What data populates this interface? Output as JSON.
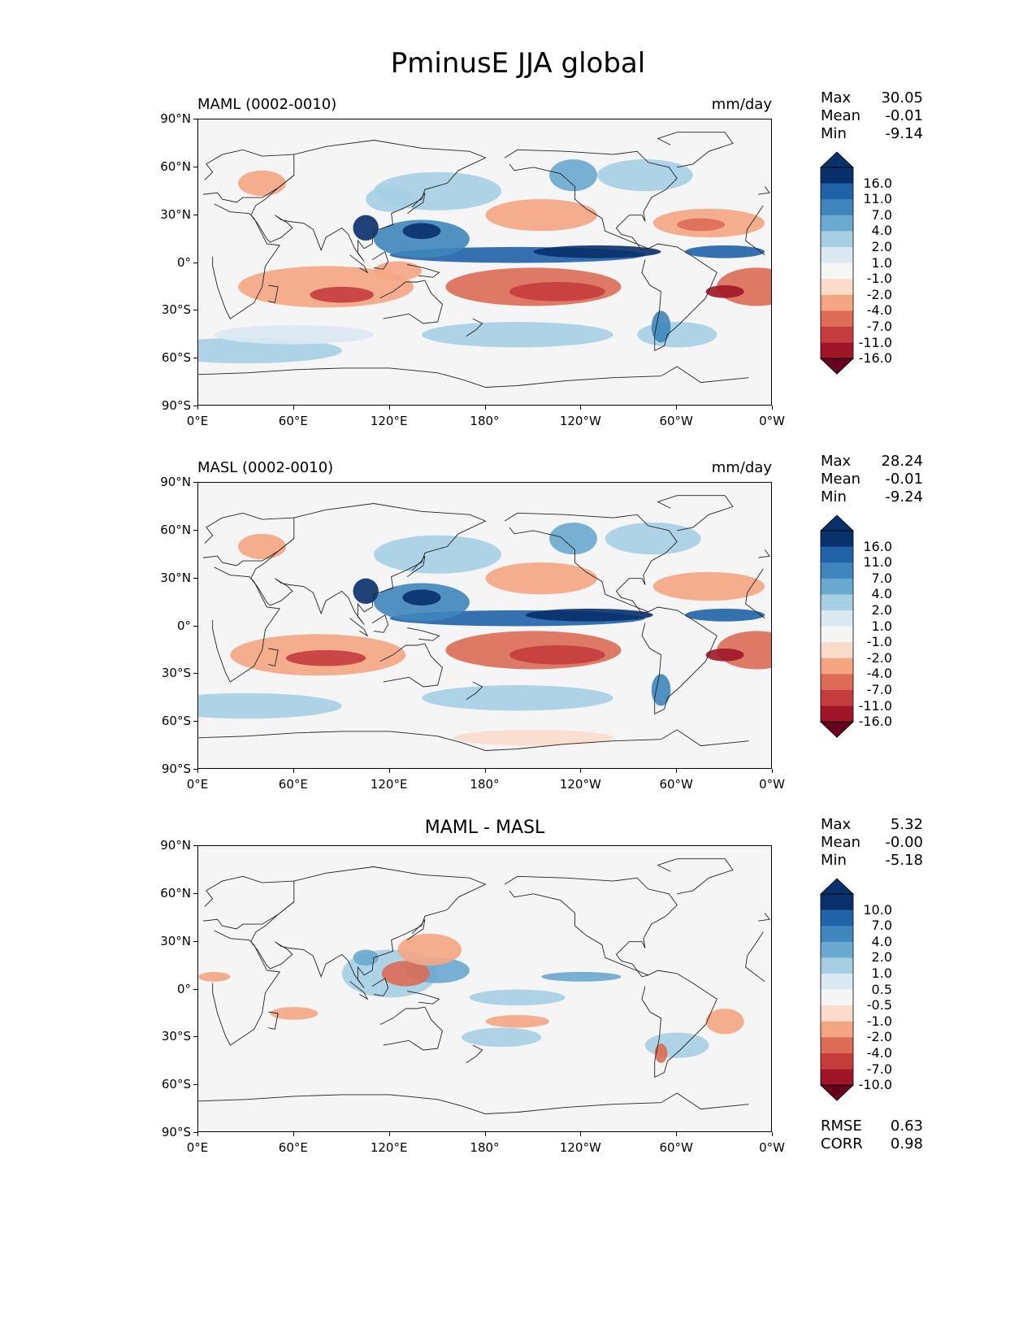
{
  "title": "PminusE JJA global",
  "colors": {
    "ocean_bg": "#f5f5f5",
    "coast": "#222222",
    "cmap_blue": [
      "#dbe9f3",
      "#a7cfe4",
      "#6aa9d0",
      "#3e86bc",
      "#2063a8",
      "#08306b"
    ],
    "cmap_red": [
      "#fbdccb",
      "#f4a683",
      "#dc6c57",
      "#c43c3c",
      "#a01628",
      "#67001f"
    ]
  },
  "axis": {
    "lat_ticks": [
      "90°N",
      "60°N",
      "30°N",
      "0°",
      "30°S",
      "60°S",
      "90°S"
    ],
    "lon_ticks": [
      "0°E",
      "60°E",
      "120°E",
      "180°",
      "120°W",
      "60°W",
      "0°W"
    ]
  },
  "panels": [
    {
      "label_left": "MAML (0002-0010)",
      "label_right": "mm/day",
      "label_center": "",
      "stats": [
        {
          "name": "Max",
          "value": "30.05"
        },
        {
          "name": "Mean",
          "value": "-0.01"
        },
        {
          "name": "Min",
          "value": "-9.14"
        }
      ],
      "colorbar_levels": [
        "16.0",
        "11.0",
        "7.0",
        "4.0",
        "2.0",
        "1.0",
        "-1.0",
        "-2.0",
        "-4.0",
        "-7.0",
        "-11.0",
        "-16.0"
      ],
      "extra_stats": []
    },
    {
      "label_left": "MASL (0002-0010)",
      "label_right": "mm/day",
      "label_center": "",
      "stats": [
        {
          "name": "Max",
          "value": "28.24"
        },
        {
          "name": "Mean",
          "value": "-0.01"
        },
        {
          "name": "Min",
          "value": "-9.24"
        }
      ],
      "colorbar_levels": [
        "16.0",
        "11.0",
        "7.0",
        "4.0",
        "2.0",
        "1.0",
        "-1.0",
        "-2.0",
        "-4.0",
        "-7.0",
        "-11.0",
        "-16.0"
      ],
      "extra_stats": []
    },
    {
      "label_left": "",
      "label_right": "",
      "label_center": "MAML - MASL",
      "stats": [
        {
          "name": "Max",
          "value": "5.32"
        },
        {
          "name": "Mean",
          "value": "-0.00"
        },
        {
          "name": "Min",
          "value": "-5.18"
        }
      ],
      "colorbar_levels": [
        "10.0",
        "7.0",
        "4.0",
        "2.0",
        "1.0",
        "0.5",
        "-0.5",
        "-1.0",
        "-2.0",
        "-4.0",
        "-7.0",
        "-10.0"
      ],
      "extra_stats": [
        {
          "name": "RMSE",
          "value": "0.63"
        },
        {
          "name": "CORR",
          "value": "0.98"
        }
      ]
    }
  ]
}
